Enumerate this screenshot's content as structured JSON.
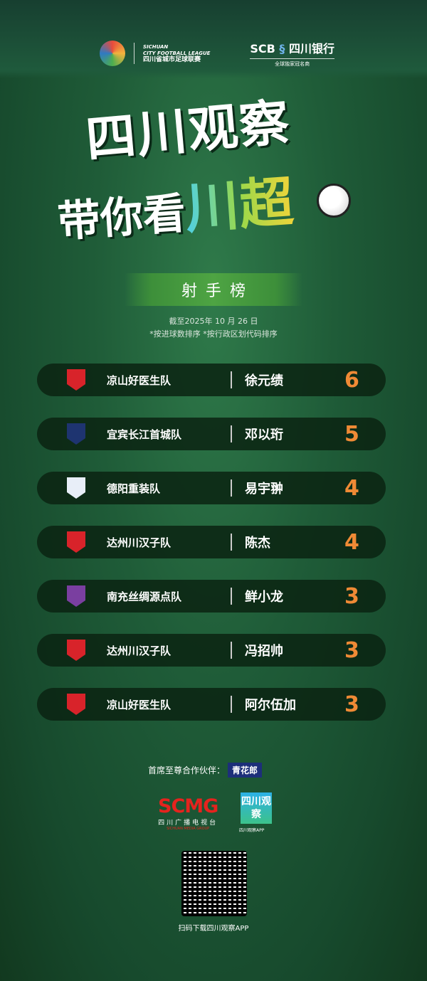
{
  "header": {
    "league_en1": "SICHUAN",
    "league_en2": "CITY FOOTBALL LEAGUE",
    "league_cn": "四川省城市足球联赛",
    "sponsor_name": "SCB",
    "sponsor_cn": "四川银行",
    "sponsor_sub": "全球独家冠名商"
  },
  "hero": {
    "line1": "四川观察",
    "line2a": "带你看",
    "line2b": "川超"
  },
  "board": {
    "title": "射手榜",
    "date": "截至2025年 10 月 26 日",
    "sort_note": "*按进球数排序 *按行政区划代码排序"
  },
  "colors": {
    "goals": "#ef8a35",
    "row_bg": "#0a2312"
  },
  "rows": [
    {
      "team": "凉山好医生队",
      "player": "徐元绩",
      "goals": "6",
      "badge_color": "#d8232a"
    },
    {
      "team": "宜宾长江首城队",
      "player": "邓以珩",
      "goals": "5",
      "badge_color": "#1e3470"
    },
    {
      "team": "德阳重装队",
      "player": "易宇翀",
      "goals": "4",
      "badge_color": "#e8eef8"
    },
    {
      "team": "达州川汉子队",
      "player": "陈杰",
      "goals": "4",
      "badge_color": "#d8232a"
    },
    {
      "team": "南充丝绸源点队",
      "player": "鲜小龙",
      "goals": "3",
      "badge_color": "#7a3fa0"
    },
    {
      "team": "达州川汉子队",
      "player": "冯招帅",
      "goals": "3",
      "badge_color": "#d8232a"
    },
    {
      "team": "凉山好医生队",
      "player": "阿尔伍加",
      "goals": "3",
      "badge_color": "#d8232a"
    }
  ],
  "footer": {
    "partner_label": "首席至尊合作伙伴：",
    "partner_name": "青花郎",
    "scmg": "SCMG",
    "scmg_cn": "四川广播电视台",
    "scmg_en": "SICHUAN MEDIA GROUP",
    "app_logo": "四川观察",
    "app_label": "四川观察APP",
    "qr_caption": "扫码下载四川观察APP"
  }
}
